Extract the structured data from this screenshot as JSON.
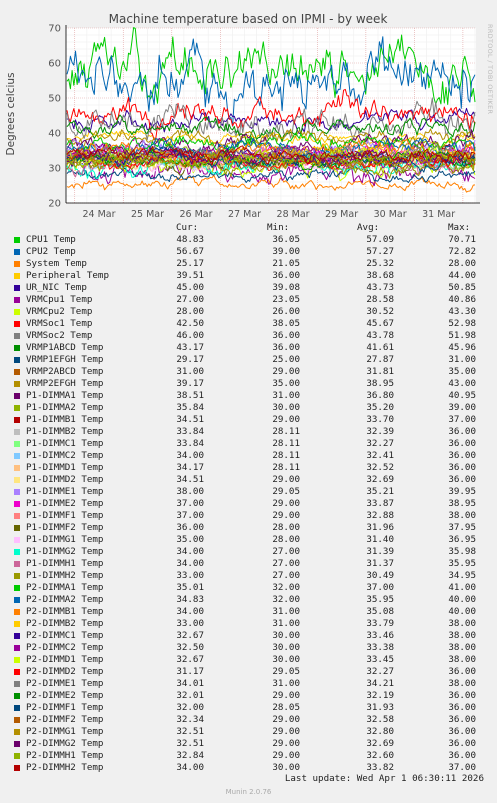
{
  "chart_data": {
    "type": "line",
    "title": "Machine temperature based on IPMI - by week",
    "ylabel": "Degrees celcius",
    "xlabel": "",
    "ylim": [
      20,
      70
    ],
    "yticks": [
      20,
      30,
      40,
      50,
      60,
      70
    ],
    "xticks": [
      "24 Mar",
      "25 Mar",
      "26 Mar",
      "27 Mar",
      "28 Mar",
      "29 Mar",
      "30 Mar",
      "31 Mar"
    ],
    "grid": true,
    "legend_headers": [
      "Cur:",
      "Min:",
      "Avg:",
      "Max:"
    ],
    "series": [
      {
        "name": "CPU1 Temp",
        "color": "#00cc00",
        "cur": "48.83",
        "min": "36.05",
        "avg": "57.09",
        "max": "70.71"
      },
      {
        "name": "CPU2 Temp",
        "color": "#0066b3",
        "cur": "56.67",
        "min": "39.00",
        "avg": "57.27",
        "max": "72.82"
      },
      {
        "name": "System Temp",
        "color": "#ff8000",
        "cur": "25.17",
        "min": "21.05",
        "avg": "25.32",
        "max": "28.00"
      },
      {
        "name": "Peripheral Temp",
        "color": "#ffcc00",
        "cur": "39.51",
        "min": "36.00",
        "avg": "38.68",
        "max": "44.00"
      },
      {
        "name": "UR_NIC Temp",
        "color": "#330099",
        "cur": "45.00",
        "min": "39.08",
        "avg": "43.73",
        "max": "50.85"
      },
      {
        "name": "VRMCpu1 Temp",
        "color": "#990099",
        "cur": "27.00",
        "min": "23.05",
        "avg": "28.58",
        "max": "40.86"
      },
      {
        "name": "VRMCpu2 Temp",
        "color": "#ccff00",
        "cur": "28.00",
        "min": "26.00",
        "avg": "30.52",
        "max": "43.30"
      },
      {
        "name": "VRMSoc1 Temp",
        "color": "#ff0000",
        "cur": "42.50",
        "min": "38.05",
        "avg": "45.67",
        "max": "52.98"
      },
      {
        "name": "VRMSoc2 Temp",
        "color": "#808080",
        "cur": "46.00",
        "min": "36.00",
        "avg": "43.78",
        "max": "51.98"
      },
      {
        "name": "VRMP1ABCD Temp",
        "color": "#008f00",
        "cur": "43.17",
        "min": "36.00",
        "avg": "41.61",
        "max": "45.96"
      },
      {
        "name": "VRMP1EFGH Temp",
        "color": "#00487d",
        "cur": "29.17",
        "min": "25.00",
        "avg": "27.87",
        "max": "31.00"
      },
      {
        "name": "VRMP2ABCD Temp",
        "color": "#b35a00",
        "cur": "31.00",
        "min": "29.00",
        "avg": "31.81",
        "max": "35.00"
      },
      {
        "name": "VRMP2EFGH Temp",
        "color": "#b38f00",
        "cur": "39.17",
        "min": "35.00",
        "avg": "38.95",
        "max": "43.00"
      },
      {
        "name": "P1-DIMMA1 Temp",
        "color": "#6b006b",
        "cur": "38.51",
        "min": "31.00",
        "avg": "36.80",
        "max": "40.95"
      },
      {
        "name": "P1-DIMMA2 Temp",
        "color": "#8fb300",
        "cur": "35.84",
        "min": "30.00",
        "avg": "35.20",
        "max": "39.00"
      },
      {
        "name": "P1-DIMMB1 Temp",
        "color": "#b30000",
        "cur": "34.51",
        "min": "29.00",
        "avg": "33.70",
        "max": "37.00"
      },
      {
        "name": "P1-DIMMB2 Temp",
        "color": "#bebebe",
        "cur": "33.84",
        "min": "28.11",
        "avg": "32.39",
        "max": "36.00"
      },
      {
        "name": "P1-DIMMC1 Temp",
        "color": "#80ff80",
        "cur": "33.84",
        "min": "28.11",
        "avg": "32.27",
        "max": "36.00"
      },
      {
        "name": "P1-DIMMC2 Temp",
        "color": "#80c9ff",
        "cur": "34.00",
        "min": "28.11",
        "avg": "32.41",
        "max": "36.00"
      },
      {
        "name": "P1-DIMMD1 Temp",
        "color": "#ffc080",
        "cur": "34.17",
        "min": "28.11",
        "avg": "32.52",
        "max": "36.00"
      },
      {
        "name": "P1-DIMMD2 Temp",
        "color": "#ffe680",
        "cur": "34.51",
        "min": "29.00",
        "avg": "32.69",
        "max": "36.00"
      },
      {
        "name": "P1-DIMME1 Temp",
        "color": "#aa80ff",
        "cur": "38.00",
        "min": "29.05",
        "avg": "35.21",
        "max": "39.95"
      },
      {
        "name": "P1-DIMME2 Temp",
        "color": "#ee00cc",
        "cur": "37.00",
        "min": "29.00",
        "avg": "33.87",
        "max": "38.95"
      },
      {
        "name": "P1-DIMMF1 Temp",
        "color": "#ff8080",
        "cur": "37.00",
        "min": "29.00",
        "avg": "32.88",
        "max": "38.00"
      },
      {
        "name": "P1-DIMMF2 Temp",
        "color": "#666600",
        "cur": "36.00",
        "min": "28.00",
        "avg": "31.96",
        "max": "37.95"
      },
      {
        "name": "P1-DIMMG1 Temp",
        "color": "#ffbfff",
        "cur": "35.00",
        "min": "28.00",
        "avg": "31.40",
        "max": "36.95"
      },
      {
        "name": "P1-DIMMG2 Temp",
        "color": "#00ffcc",
        "cur": "34.00",
        "min": "27.00",
        "avg": "31.39",
        "max": "35.98"
      },
      {
        "name": "P1-DIMMH1 Temp",
        "color": "#cc6699",
        "cur": "34.00",
        "min": "27.00",
        "avg": "31.37",
        "max": "35.95"
      },
      {
        "name": "P1-DIMMH2 Temp",
        "color": "#999900",
        "cur": "33.00",
        "min": "27.00",
        "avg": "30.49",
        "max": "34.95"
      },
      {
        "name": "P2-DIMMA1 Temp",
        "color": "#00cc00",
        "cur": "35.01",
        "min": "32.00",
        "avg": "37.00",
        "max": "41.00"
      },
      {
        "name": "P2-DIMMA2 Temp",
        "color": "#0066b3",
        "cur": "34.83",
        "min": "32.00",
        "avg": "35.95",
        "max": "40.00"
      },
      {
        "name": "P2-DIMMB1 Temp",
        "color": "#ff8000",
        "cur": "34.00",
        "min": "31.00",
        "avg": "35.08",
        "max": "40.00"
      },
      {
        "name": "P2-DIMMB2 Temp",
        "color": "#ffcc00",
        "cur": "33.00",
        "min": "31.00",
        "avg": "33.79",
        "max": "38.00"
      },
      {
        "name": "P2-DIMMC1 Temp",
        "color": "#330099",
        "cur": "32.67",
        "min": "30.00",
        "avg": "33.46",
        "max": "38.00"
      },
      {
        "name": "P2-DIMMC2 Temp",
        "color": "#990099",
        "cur": "32.50",
        "min": "30.00",
        "avg": "33.38",
        "max": "38.00"
      },
      {
        "name": "P2-DIMMD1 Temp",
        "color": "#ccff00",
        "cur": "32.67",
        "min": "30.00",
        "avg": "33.45",
        "max": "38.00"
      },
      {
        "name": "P2-DIMMD2 Temp",
        "color": "#ff0000",
        "cur": "31.17",
        "min": "29.05",
        "avg": "32.27",
        "max": "36.00"
      },
      {
        "name": "P2-DIMME1 Temp",
        "color": "#808080",
        "cur": "34.01",
        "min": "31.00",
        "avg": "34.21",
        "max": "38.00"
      },
      {
        "name": "P2-DIMME2 Temp",
        "color": "#008f00",
        "cur": "32.01",
        "min": "29.00",
        "avg": "32.19",
        "max": "36.00"
      },
      {
        "name": "P2-DIMMF1 Temp",
        "color": "#00487d",
        "cur": "32.00",
        "min": "28.05",
        "avg": "31.93",
        "max": "36.00"
      },
      {
        "name": "P2-DIMMF2 Temp",
        "color": "#b35a00",
        "cur": "32.34",
        "min": "29.00",
        "avg": "32.58",
        "max": "36.00"
      },
      {
        "name": "P2-DIMMG1 Temp",
        "color": "#b38f00",
        "cur": "32.51",
        "min": "29.00",
        "avg": "32.80",
        "max": "36.00"
      },
      {
        "name": "P2-DIMMG2 Temp",
        "color": "#6b006b",
        "cur": "32.51",
        "min": "29.00",
        "avg": "32.69",
        "max": "36.00"
      },
      {
        "name": "P2-DIMMH1 Temp",
        "color": "#8fb300",
        "cur": "32.84",
        "min": "29.00",
        "avg": "32.60",
        "max": "36.00"
      },
      {
        "name": "P2-DIMMH2 Temp",
        "color": "#b30000",
        "cur": "34.00",
        "min": "30.00",
        "avg": "33.82",
        "max": "37.00"
      }
    ]
  },
  "last_update": "Last update: Wed Apr  1 06:30:11 2026",
  "footer": "Munin 2.0.76",
  "rrd_tag": "RRDTOOL / TOBI OETIKER"
}
